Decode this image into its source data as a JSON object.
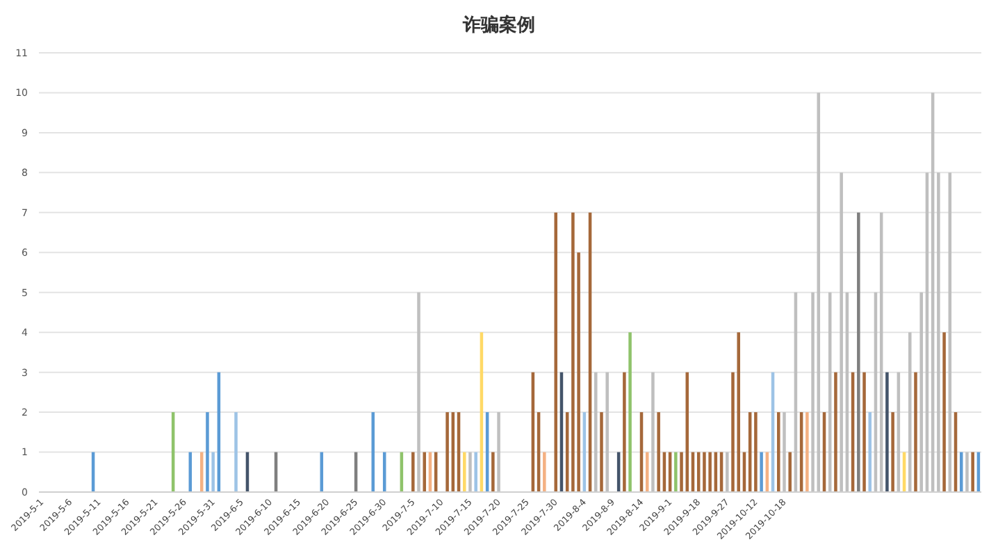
{
  "chart_data": {
    "type": "bar",
    "title": "诈骗案例",
    "categories": [
      "2019-5-1",
      null,
      null,
      null,
      null,
      "2019-5-6",
      null,
      null,
      null,
      null,
      "2019-5-11",
      null,
      null,
      null,
      null,
      "2019-5-16",
      null,
      null,
      null,
      null,
      "2019-5-21",
      null,
      null,
      null,
      null,
      "2019-5-26",
      null,
      null,
      null,
      null,
      "2019-5-31",
      null,
      null,
      null,
      null,
      "2019-6-5",
      null,
      null,
      null,
      null,
      "2019-6-10",
      null,
      null,
      null,
      null,
      "2019-6-15",
      null,
      null,
      null,
      null,
      "2019-6-20",
      null,
      null,
      null,
      null,
      "2019-6-25",
      null,
      null,
      null,
      null,
      "2019-6-30",
      null,
      null,
      null,
      null,
      "2019-7-5",
      null,
      null,
      null,
      null,
      "2019-7-10",
      null,
      null,
      null,
      null,
      "2019-7-15",
      null,
      null,
      null,
      null,
      "2019-7-20",
      null,
      null,
      null,
      null,
      "2019-7-25",
      null,
      null,
      null,
      null,
      "2019-7-30",
      null,
      null,
      null,
      null,
      "2019-8-4",
      null,
      null,
      null,
      null,
      "2019-8-9",
      null,
      null,
      null,
      null,
      "2019-8-14",
      null,
      null,
      null,
      null,
      "2019-9-1",
      null,
      null,
      null,
      null,
      "2019-9-18",
      null,
      null,
      null,
      null,
      "2019-9-27",
      null,
      null,
      null,
      null,
      "2019-10-12",
      null,
      null,
      null,
      null,
      "2019-10-18",
      null,
      null,
      null,
      null,
      null,
      null,
      null,
      null,
      null,
      null,
      null,
      null,
      null,
      null,
      null,
      null,
      null,
      null,
      null,
      null,
      null,
      null,
      null,
      null,
      null,
      null,
      null,
      null,
      null,
      null,
      null,
      null,
      null,
      null
    ],
    "values": [
      0,
      0,
      0,
      0,
      0,
      0,
      0,
      0,
      0,
      1,
      0,
      0,
      0,
      0,
      0,
      0,
      0,
      0,
      0,
      0,
      0,
      0,
      0,
      2,
      0,
      0,
      1,
      0,
      1,
      2,
      1,
      3,
      0,
      0,
      2,
      0,
      1,
      0,
      0,
      0,
      0,
      1,
      0,
      0,
      0,
      0,
      0,
      0,
      0,
      1,
      0,
      0,
      0,
      0,
      0,
      1,
      0,
      0,
      2,
      0,
      1,
      0,
      0,
      1,
      0,
      1,
      5,
      1,
      1,
      1,
      0,
      2,
      2,
      2,
      1,
      1,
      1,
      4,
      2,
      1,
      2,
      0,
      0,
      0,
      0,
      0,
      3,
      2,
      1,
      0,
      7,
      3,
      2,
      7,
      6,
      2,
      7,
      3,
      2,
      3,
      0,
      1,
      3,
      4,
      0,
      2,
      1,
      3,
      2,
      1,
      1,
      1,
      1,
      3,
      1,
      1,
      1,
      1,
      1,
      1,
      1,
      3,
      4,
      1,
      2,
      2,
      1,
      1,
      3,
      2,
      2,
      1,
      5,
      2,
      2,
      5,
      10,
      2,
      5,
      3,
      8,
      5,
      3,
      7,
      3,
      2,
      5,
      7,
      3,
      2,
      3,
      1,
      4,
      3,
      5,
      8,
      10,
      8,
      4,
      8,
      2,
      1,
      1,
      1,
      1
    ],
    "colors": [
      "#bfbfbf",
      "#bfbfbf",
      "#bfbfbf",
      "#bfbfbf",
      "#bfbfbf",
      "#bfbfbf",
      "#bfbfbf",
      "#bfbfbf",
      "#bfbfbf",
      "#5b9bd5",
      "#bfbfbf",
      "#bfbfbf",
      "#bfbfbf",
      "#bfbfbf",
      "#bfbfbf",
      "#bfbfbf",
      "#bfbfbf",
      "#bfbfbf",
      "#bfbfbf",
      "#bfbfbf",
      "#bfbfbf",
      "#bfbfbf",
      "#bfbfbf",
      "#8fc36b",
      "#bfbfbf",
      "#bfbfbf",
      "#5b9bd5",
      "#bfbfbf",
      "#f4b183",
      "#5b9bd5",
      "#9dc3e6",
      "#5b9bd5",
      "#bfbfbf",
      "#bfbfbf",
      "#9dc3e6",
      "#bfbfbf",
      "#44546a",
      "#bfbfbf",
      "#bfbfbf",
      "#bfbfbf",
      "#bfbfbf",
      "#7f7f7f",
      "#bfbfbf",
      "#bfbfbf",
      "#bfbfbf",
      "#bfbfbf",
      "#bfbfbf",
      "#bfbfbf",
      "#bfbfbf",
      "#5b9bd5",
      "#bfbfbf",
      "#bfbfbf",
      "#bfbfbf",
      "#bfbfbf",
      "#bfbfbf",
      "#7f7f7f",
      "#bfbfbf",
      "#bfbfbf",
      "#5b9bd5",
      "#bfbfbf",
      "#5b9bd5",
      "#bfbfbf",
      "#bfbfbf",
      "#8fc36b",
      "#bfbfbf",
      "#a5683a",
      "#bfbfbf",
      "#a5683a",
      "#f4b183",
      "#a5683a",
      "#bfbfbf",
      "#a5683a",
      "#a5683a",
      "#a5683a",
      "#ffd966",
      "#bfbfbf",
      "#9dc3e6",
      "#ffd966",
      "#5b9bd5",
      "#a5683a",
      "#bfbfbf",
      "#bfbfbf",
      "#bfbfbf",
      "#bfbfbf",
      "#bfbfbf",
      "#bfbfbf",
      "#a5683a",
      "#a5683a",
      "#f4b183",
      "#bfbfbf",
      "#a5683a",
      "#44546a",
      "#a5683a",
      "#a5683a",
      "#a5683a",
      "#9dc3e6",
      "#a5683a",
      "#bfbfbf",
      "#a5683a",
      "#bfbfbf",
      "#bfbfbf",
      "#44546a",
      "#a5683a",
      "#8fc36b",
      "#bfbfbf",
      "#a5683a",
      "#f4b183",
      "#bfbfbf",
      "#a5683a",
      "#a5683a",
      "#a5683a",
      "#8fc36b",
      "#a5683a",
      "#a5683a",
      "#a5683a",
      "#a5683a",
      "#a5683a",
      "#a5683a",
      "#a5683a",
      "#a5683a",
      "#bfbfbf",
      "#a5683a",
      "#a5683a",
      "#a5683a",
      "#a5683a",
      "#a5683a",
      "#5b9bd5",
      "#f4b183",
      "#9dc3e6",
      "#a5683a",
      "#bfbfbf",
      "#a5683a",
      "#bfbfbf",
      "#a5683a",
      "#f4b183",
      "#bfbfbf",
      "#bfbfbf",
      "#a5683a",
      "#bfbfbf",
      "#a5683a",
      "#bfbfbf",
      "#bfbfbf",
      "#a5683a",
      "#7f7f7f",
      "#a5683a",
      "#9dc3e6",
      "#bfbfbf",
      "#bfbfbf",
      "#44546a",
      "#a5683a",
      "#bfbfbf",
      "#ffd966",
      "#bfbfbf",
      "#a5683a",
      "#bfbfbf",
      "#bfbfbf",
      "#bfbfbf",
      "#bfbfbf",
      "#a5683a",
      "#bfbfbf",
      "#a5683a",
      "#5b9bd5",
      "#bfbfbf",
      "#a5683a",
      "#5b9bd5"
    ],
    "ylim": [
      0,
      11
    ],
    "yticks": [
      0,
      1,
      2,
      3,
      4,
      5,
      6,
      7,
      8,
      9,
      10,
      11
    ],
    "grid": "y"
  }
}
